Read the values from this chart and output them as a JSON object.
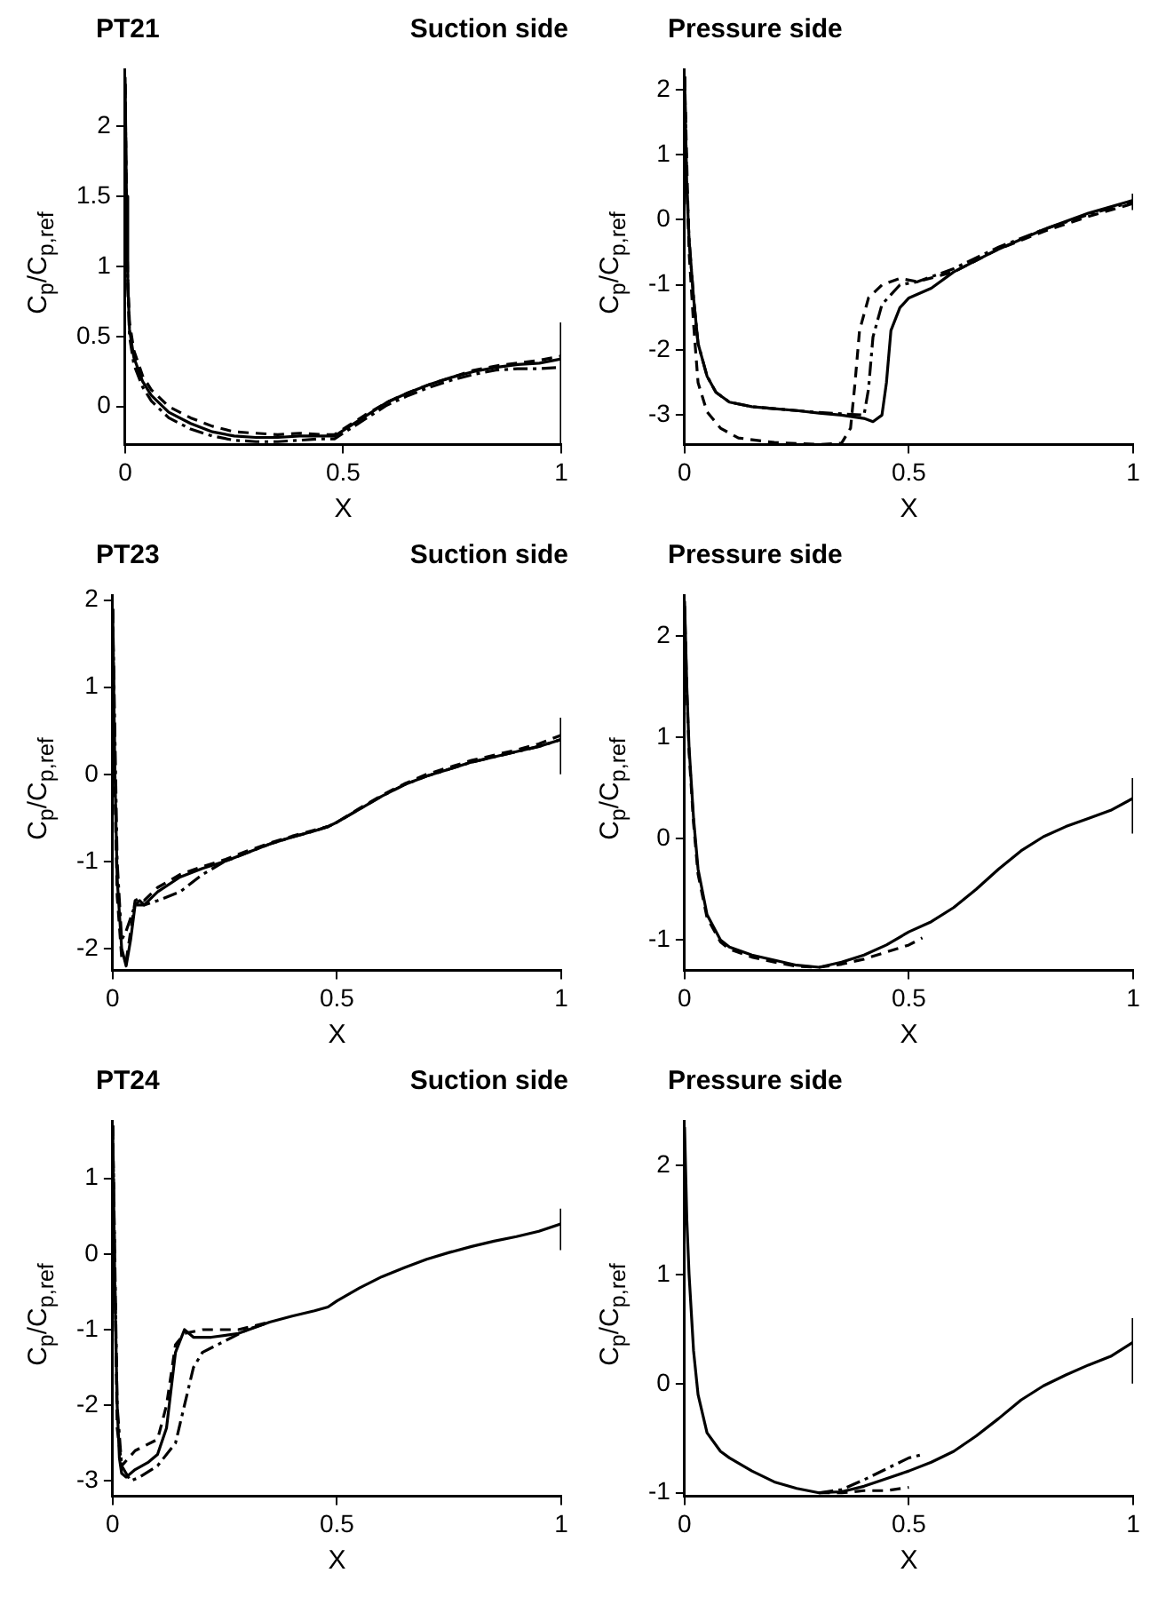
{
  "chart_data": [
    {
      "type": "line",
      "title": "PT21",
      "subtitle": "Suction side",
      "xlabel": "X",
      "ylabel": "C$_{p}$/C$_{p,ref}$",
      "xlim": [
        0,
        1
      ],
      "xticks": [
        0,
        0.5,
        1
      ],
      "ylim": [
        -0.27,
        2.4
      ],
      "yticks": [
        0,
        0.5,
        1,
        1.5,
        2
      ],
      "series": [
        {
          "color": "#000000",
          "line_style": "solid",
          "x": [
            0,
            0.003,
            0.006,
            0.01,
            0.02,
            0.04,
            0.06,
            0.1,
            0.15,
            0.2,
            0.25,
            0.3,
            0.35,
            0.4,
            0.45,
            0.48,
            0.5,
            0.55,
            0.6,
            0.65,
            0.7,
            0.75,
            0.8,
            0.85,
            0.9,
            0.95,
            1
          ],
          "values": [
            2.35,
            1.5,
            0.9,
            0.55,
            0.35,
            0.18,
            0.08,
            -0.04,
            -0.12,
            -0.18,
            -0.21,
            -0.22,
            -0.22,
            -0.21,
            -0.21,
            -0.21,
            -0.17,
            -0.07,
            0.03,
            0.1,
            0.16,
            0.21,
            0.25,
            0.28,
            0.3,
            0.31,
            0.34
          ]
        },
        {
          "color": "#000000",
          "line_style": "dashed",
          "x": [
            0,
            0.003,
            0.006,
            0.01,
            0.02,
            0.04,
            0.06,
            0.1,
            0.15,
            0.2,
            0.25,
            0.3,
            0.35,
            0.4,
            0.45,
            0.48,
            0.5,
            0.55,
            0.6,
            0.65,
            0.7,
            0.75,
            0.8,
            0.85,
            0.9,
            0.95,
            1
          ],
          "values": [
            2.3,
            1.45,
            0.9,
            0.6,
            0.4,
            0.22,
            0.12,
            0.0,
            -0.08,
            -0.14,
            -0.18,
            -0.19,
            -0.2,
            -0.19,
            -0.2,
            -0.2,
            -0.16,
            -0.06,
            0.03,
            0.1,
            0.16,
            0.21,
            0.26,
            0.29,
            0.31,
            0.33,
            0.36
          ]
        },
        {
          "color": "#000000",
          "line_style": "dashdot",
          "x": [
            0,
            0.003,
            0.006,
            0.01,
            0.02,
            0.04,
            0.06,
            0.1,
            0.15,
            0.2,
            0.25,
            0.3,
            0.35,
            0.4,
            0.45,
            0.48,
            0.5,
            0.55,
            0.6,
            0.65,
            0.7,
            0.75,
            0.8,
            0.85,
            0.9,
            0.95,
            1
          ],
          "values": [
            2.3,
            1.4,
            0.85,
            0.5,
            0.3,
            0.14,
            0.04,
            -0.08,
            -0.16,
            -0.21,
            -0.24,
            -0.25,
            -0.25,
            -0.24,
            -0.23,
            -0.23,
            -0.19,
            -0.09,
            0.01,
            0.08,
            0.14,
            0.19,
            0.23,
            0.26,
            0.27,
            0.27,
            0.28
          ]
        },
        {
          "color": "#000000",
          "line_style": "solid",
          "x": [
            1,
            1
          ],
          "values": [
            -0.27,
            0.6
          ]
        }
      ]
    },
    {
      "type": "line",
      "title": "Pressure side",
      "xlabel": "X",
      "ylabel": "C$_{p}$/C$_{p,ref}$",
      "xlim": [
        0,
        1
      ],
      "xticks": [
        0,
        0.5,
        1
      ],
      "ylim": [
        -3.45,
        2.3
      ],
      "yticks": [
        -3,
        -2,
        -1,
        0,
        1,
        2
      ],
      "series": [
        {
          "color": "#000000",
          "line_style": "solid",
          "x": [
            0,
            0.005,
            0.01,
            0.02,
            0.03,
            0.05,
            0.07,
            0.1,
            0.15,
            0.2,
            0.25,
            0.3,
            0.35,
            0.4,
            0.42,
            0.44,
            0.45,
            0.46,
            0.48,
            0.5,
            0.55,
            0.6,
            0.7,
            0.8,
            0.9,
            1
          ],
          "values": [
            2.2,
            0.5,
            -0.3,
            -1.2,
            -1.9,
            -2.4,
            -2.65,
            -2.8,
            -2.87,
            -2.9,
            -2.93,
            -2.97,
            -3.0,
            -3.05,
            -3.1,
            -3.0,
            -2.5,
            -1.7,
            -1.35,
            -1.2,
            -1.05,
            -0.8,
            -0.45,
            -0.15,
            0.1,
            0.3
          ]
        },
        {
          "color": "#000000",
          "line_style": "dashed",
          "x": [
            0,
            0.01,
            0.02,
            0.03,
            0.05,
            0.08,
            0.12,
            0.2,
            0.3,
            0.35,
            0.37,
            0.38,
            0.39,
            0.41,
            0.44,
            0.48,
            0.52,
            0.6,
            0.7,
            0.8,
            0.9,
            1
          ],
          "values": [
            2.2,
            -0.5,
            -1.6,
            -2.5,
            -2.95,
            -3.2,
            -3.35,
            -3.42,
            -3.45,
            -3.43,
            -3.2,
            -2.5,
            -1.7,
            -1.2,
            -1.0,
            -0.9,
            -0.95,
            -0.8,
            -0.45,
            -0.18,
            0.05,
            0.25
          ]
        },
        {
          "color": "#000000",
          "line_style": "dashdot",
          "x": [
            0,
            0.005,
            0.01,
            0.02,
            0.03,
            0.05,
            0.07,
            0.1,
            0.15,
            0.2,
            0.25,
            0.3,
            0.35,
            0.4,
            0.41,
            0.42,
            0.44,
            0.48,
            0.52,
            0.6,
            0.7,
            0.8,
            0.9,
            1
          ],
          "values": [
            2.2,
            0.5,
            -0.3,
            -1.2,
            -1.9,
            -2.4,
            -2.65,
            -2.8,
            -2.87,
            -2.9,
            -2.93,
            -2.96,
            -2.98,
            -3.0,
            -2.6,
            -1.8,
            -1.3,
            -1.0,
            -0.95,
            -0.75,
            -0.42,
            -0.15,
            0.08,
            0.28
          ]
        },
        {
          "color": "#000000",
          "line_style": "solid",
          "x": [
            1,
            1
          ],
          "values": [
            0.15,
            0.4
          ]
        }
      ]
    },
    {
      "type": "line",
      "title": "PT23",
      "subtitle": "Suction side",
      "xlabel": "X",
      "ylabel": "C$_{p}$/C$_{p,ref}$",
      "xlim": [
        0,
        1
      ],
      "xticks": [
        0,
        0.5,
        1
      ],
      "ylim": [
        -2.25,
        2.05
      ],
      "yticks": [
        -2,
        -1,
        0,
        1,
        2
      ],
      "series": [
        {
          "color": "#000000",
          "line_style": "solid",
          "x": [
            0,
            0.005,
            0.01,
            0.02,
            0.03,
            0.04,
            0.05,
            0.06,
            0.07,
            0.1,
            0.15,
            0.2,
            0.25,
            0.3,
            0.35,
            0.4,
            0.45,
            0.48,
            0.5,
            0.55,
            0.6,
            0.65,
            0.7,
            0.75,
            0.8,
            0.85,
            0.9,
            0.95,
            1
          ],
          "values": [
            1.9,
            0,
            -1.2,
            -2.0,
            -2.2,
            -1.9,
            -1.5,
            -1.45,
            -1.5,
            -1.35,
            -1.18,
            -1.08,
            -1.0,
            -0.9,
            -0.8,
            -0.72,
            -0.65,
            -0.6,
            -0.55,
            -0.4,
            -0.25,
            -0.12,
            -0.02,
            0.06,
            0.14,
            0.2,
            0.26,
            0.32,
            0.4
          ]
        },
        {
          "color": "#000000",
          "line_style": "dashed",
          "x": [
            0,
            0.005,
            0.01,
            0.02,
            0.03,
            0.04,
            0.05,
            0.06,
            0.07,
            0.1,
            0.15,
            0.2,
            0.25,
            0.3,
            0.35,
            0.4,
            0.45,
            0.48,
            0.5,
            0.55,
            0.6,
            0.65,
            0.7,
            0.75,
            0.8,
            0.85,
            0.9,
            0.95,
            1
          ],
          "values": [
            1.9,
            -0.2,
            -1.4,
            -2.1,
            -2.15,
            -1.8,
            -1.45,
            -1.42,
            -1.45,
            -1.3,
            -1.15,
            -1.06,
            -0.98,
            -0.88,
            -0.79,
            -0.71,
            -0.64,
            -0.6,
            -0.55,
            -0.39,
            -0.24,
            -0.11,
            0.0,
            0.08,
            0.16,
            0.22,
            0.28,
            0.35,
            0.45
          ]
        },
        {
          "color": "#000000",
          "line_style": "dashdot",
          "x": [
            0,
            0.01,
            0.02,
            0.03,
            0.05,
            0.07,
            0.1,
            0.15,
            0.2,
            0.25,
            0.3,
            0.35,
            0.4,
            0.45,
            0.48,
            0.5,
            0.55,
            0.6,
            0.65,
            0.7,
            0.75,
            0.8,
            0.85,
            0.9,
            0.95,
            1
          ],
          "values": [
            1.9,
            -1.0,
            -1.9,
            -1.8,
            -1.5,
            -1.5,
            -1.45,
            -1.35,
            -1.15,
            -1.0,
            -0.9,
            -0.8,
            -0.72,
            -0.65,
            -0.6,
            -0.55,
            -0.4,
            -0.25,
            -0.12,
            -0.02,
            0.06,
            0.14,
            0.2,
            0.26,
            0.32,
            0.4
          ]
        },
        {
          "color": "#000000",
          "line_style": "solid",
          "x": [
            1,
            1
          ],
          "values": [
            0,
            0.65
          ]
        }
      ]
    },
    {
      "type": "line",
      "title": "Pressure side",
      "xlabel": "X",
      "ylabel": "C$_{p}$/C$_{p,ref}$",
      "xlim": [
        0,
        1
      ],
      "xticks": [
        0,
        0.5,
        1
      ],
      "ylim": [
        -1.3,
        2.4
      ],
      "yticks": [
        -1,
        0,
        1,
        2
      ],
      "series": [
        {
          "color": "#000000",
          "line_style": "solid",
          "x": [
            0,
            0.005,
            0.01,
            0.02,
            0.03,
            0.05,
            0.08,
            0.1,
            0.15,
            0.2,
            0.25,
            0.3,
            0.35,
            0.4,
            0.45,
            0.5,
            0.55,
            0.6,
            0.65,
            0.7,
            0.75,
            0.8,
            0.85,
            0.9,
            0.95,
            1
          ],
          "values": [
            2.35,
            1.5,
            0.9,
            0.2,
            -0.3,
            -0.75,
            -1.0,
            -1.07,
            -1.15,
            -1.2,
            -1.25,
            -1.27,
            -1.22,
            -1.15,
            -1.05,
            -0.92,
            -0.82,
            -0.68,
            -0.5,
            -0.3,
            -0.12,
            0.02,
            0.12,
            0.2,
            0.28,
            0.4
          ]
        },
        {
          "color": "#000000",
          "line_style": "dashed",
          "x": [
            0,
            0.005,
            0.01,
            0.02,
            0.03,
            0.05,
            0.08,
            0.1,
            0.15,
            0.2,
            0.25,
            0.3,
            0.35,
            0.4,
            0.45,
            0.5,
            0.53
          ],
          "values": [
            2.3,
            1.45,
            0.85,
            0.15,
            -0.35,
            -0.78,
            -1.02,
            -1.09,
            -1.17,
            -1.22,
            -1.26,
            -1.27,
            -1.24,
            -1.19,
            -1.12,
            -1.05,
            -0.98
          ]
        },
        {
          "color": "#000000",
          "line_style": "solid",
          "x": [
            1,
            1
          ],
          "values": [
            0.05,
            0.6
          ]
        }
      ]
    },
    {
      "type": "line",
      "title": "PT24",
      "subtitle": "Suction side",
      "xlabel": "X",
      "ylabel": "C$_{p}$/C$_{p,ref}$",
      "xlim": [
        0,
        1
      ],
      "xticks": [
        0,
        0.5,
        1
      ],
      "ylim": [
        -3.2,
        1.75
      ],
      "yticks": [
        -3,
        -2,
        -1,
        0,
        1
      ],
      "series": [
        {
          "color": "#000000",
          "line_style": "solid",
          "x": [
            0,
            0.005,
            0.01,
            0.015,
            0.02,
            0.03,
            0.05,
            0.08,
            0.1,
            0.12,
            0.13,
            0.14,
            0.16,
            0.18,
            0.22,
            0.28,
            0.35,
            0.4,
            0.45,
            0.48,
            0.5,
            0.55,
            0.6,
            0.65,
            0.7,
            0.75,
            0.8,
            0.85,
            0.9,
            0.95,
            1
          ],
          "values": [
            1.7,
            -0.5,
            -2.0,
            -2.7,
            -2.9,
            -2.95,
            -2.85,
            -2.75,
            -2.65,
            -2.3,
            -1.8,
            -1.3,
            -1.0,
            -1.1,
            -1.1,
            -1.05,
            -0.9,
            -0.82,
            -0.75,
            -0.7,
            -0.62,
            -0.45,
            -0.3,
            -0.18,
            -0.07,
            0.02,
            0.1,
            0.17,
            0.23,
            0.3,
            0.4
          ]
        },
        {
          "color": "#000000",
          "line_style": "dashed",
          "x": [
            0,
            0.01,
            0.02,
            0.05,
            0.1,
            0.12,
            0.14,
            0.16,
            0.2,
            0.28,
            0.35
          ],
          "values": [
            1.7,
            -2.3,
            -2.8,
            -2.6,
            -2.45,
            -2.0,
            -1.2,
            -1.05,
            -1.0,
            -1.0,
            -0.9
          ]
        },
        {
          "color": "#000000",
          "line_style": "dashdot",
          "x": [
            0,
            0.01,
            0.02,
            0.04,
            0.06,
            0.1,
            0.14,
            0.16,
            0.18,
            0.2,
            0.25,
            0.3,
            0.35
          ],
          "values": [
            1.7,
            -2.0,
            -2.8,
            -3.0,
            -2.95,
            -2.8,
            -2.5,
            -2.0,
            -1.5,
            -1.3,
            -1.15,
            -1.0,
            -0.9
          ]
        },
        {
          "color": "#000000",
          "line_style": "solid",
          "x": [
            1,
            1
          ],
          "values": [
            0.05,
            0.6
          ]
        }
      ]
    },
    {
      "type": "line",
      "title": "Pressure side",
      "xlabel": "X",
      "ylabel": "C$_{p}$/C$_{p,ref}$",
      "xlim": [
        0,
        1
      ],
      "xticks": [
        0,
        0.5,
        1
      ],
      "ylim": [
        -1.03,
        2.4
      ],
      "yticks": [
        -1,
        0,
        1,
        2
      ],
      "series": [
        {
          "color": "#000000",
          "line_style": "solid",
          "x": [
            0,
            0.005,
            0.01,
            0.02,
            0.03,
            0.05,
            0.08,
            0.1,
            0.15,
            0.2,
            0.25,
            0.3,
            0.35,
            0.4,
            0.45,
            0.5,
            0.55,
            0.6,
            0.65,
            0.7,
            0.75,
            0.8,
            0.85,
            0.9,
            0.95,
            1
          ],
          "values": [
            2.35,
            1.5,
            1.0,
            0.3,
            -0.1,
            -0.45,
            -0.62,
            -0.68,
            -0.8,
            -0.9,
            -0.96,
            -1.0,
            -0.99,
            -0.94,
            -0.87,
            -0.8,
            -0.72,
            -0.62,
            -0.48,
            -0.32,
            -0.15,
            -0.02,
            0.08,
            0.17,
            0.25,
            0.38
          ]
        },
        {
          "color": "#000000",
          "line_style": "dashed",
          "x": [
            0.3,
            0.35,
            0.4,
            0.45,
            0.5
          ],
          "values": [
            -1.0,
            -1.0,
            -0.98,
            -0.98,
            -0.95
          ]
        },
        {
          "color": "#000000",
          "line_style": "dashdot",
          "x": [
            0.3,
            0.35,
            0.4,
            0.45,
            0.5,
            0.53
          ],
          "values": [
            -1.0,
            -0.97,
            -0.88,
            -0.78,
            -0.68,
            -0.65
          ]
        },
        {
          "color": "#000000",
          "line_style": "solid",
          "x": [
            1,
            1
          ],
          "values": [
            0,
            0.6
          ]
        }
      ]
    }
  ]
}
